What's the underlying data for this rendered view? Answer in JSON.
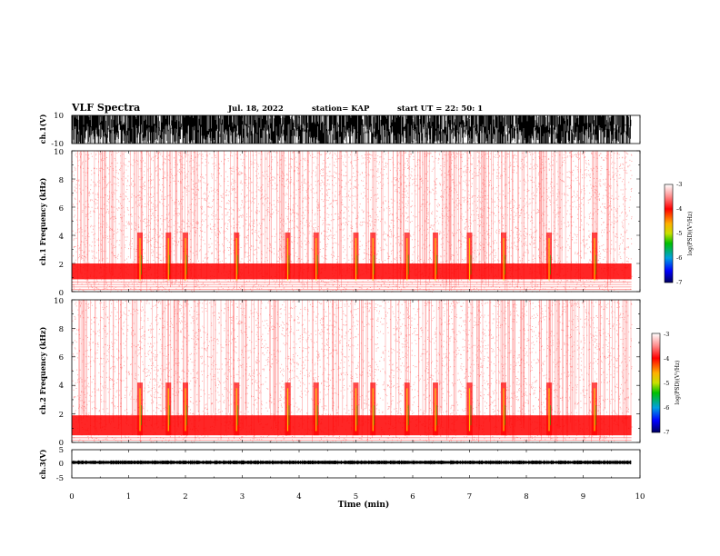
{
  "header": {
    "title": "VLF Spectra",
    "date": "Jul. 18, 2022",
    "station": "station= KAP",
    "start": "start UT =  22: 50: 1"
  },
  "colors": {
    "waveform": "#000000",
    "spectrogram_base": "#ff0000",
    "spectrogram_high": "#ffe000",
    "spectrogram_peak": "#00c000",
    "background": "#ffffff",
    "colorbar_stops": [
      "#ffffff",
      "#ff9090",
      "#ff0000",
      "#ffb000",
      "#c8e000",
      "#00c000",
      "#00a0e0",
      "#0000ff",
      "#000060"
    ]
  },
  "chart_data": [
    {
      "type": "line",
      "panel": "ch.1 waveform",
      "ylabel": "ch.1(V)",
      "ylim": [
        -10,
        10
      ],
      "yticks": [
        "10",
        "-10"
      ],
      "xlim": [
        0,
        10
      ],
      "note_fill": "signal saturates near ±10 V throughout"
    },
    {
      "type": "heatmap",
      "panel": "ch.1 spectrogram",
      "ylabel": "ch.1 Frequency (kHz)",
      "ylim": [
        0,
        10
      ],
      "yticks": [
        "0",
        "2",
        "4",
        "6",
        "8",
        "10"
      ],
      "xlim": [
        0,
        10
      ],
      "dense_band_khz": [
        0.9,
        2.0
      ],
      "bursts_min": [
        1.2,
        1.7,
        2.0,
        2.9,
        3.8,
        4.3,
        5.0,
        5.3,
        5.9,
        6.4,
        7.0,
        7.6,
        8.4,
        9.2
      ],
      "colorbar": {
        "label": "log(PSD)(V²/Hz)",
        "ticks": [
          "-3",
          "-4",
          "-5",
          "-6",
          "-7"
        ],
        "range": [
          -7,
          -3
        ]
      }
    },
    {
      "type": "heatmap",
      "panel": "ch.2 spectrogram",
      "ylabel": "ch.2 Frequency (kHz)",
      "ylim": [
        0,
        10
      ],
      "yticks": [
        "0",
        "2",
        "4",
        "6",
        "8",
        "10"
      ],
      "xlim": [
        0,
        10
      ],
      "dense_band_khz": [
        0.5,
        1.9
      ],
      "bursts_min": [
        1.2,
        1.7,
        2.0,
        2.9,
        3.8,
        4.3,
        5.0,
        5.3,
        5.9,
        6.4,
        7.0,
        7.6,
        8.4,
        9.2
      ],
      "colorbar": {
        "label": "log(PSD)(V²/Hz)",
        "ticks": [
          "-3",
          "-4",
          "-5",
          "-6",
          "-7"
        ],
        "range": [
          -7,
          -3
        ]
      }
    },
    {
      "type": "line",
      "panel": "ch.3 waveform",
      "ylabel": "ch.3(V)",
      "ylim": [
        -5,
        5
      ],
      "yticks": [
        "5",
        "0",
        "-5"
      ],
      "xlim": [
        0,
        10
      ],
      "baseline_v": 0.5,
      "amplitude_v": 0.6
    }
  ],
  "xaxis": {
    "label": "Time (min)",
    "ticks": [
      "0",
      "1",
      "2",
      "3",
      "4",
      "5",
      "6",
      "7",
      "8",
      "9",
      "10"
    ]
  }
}
